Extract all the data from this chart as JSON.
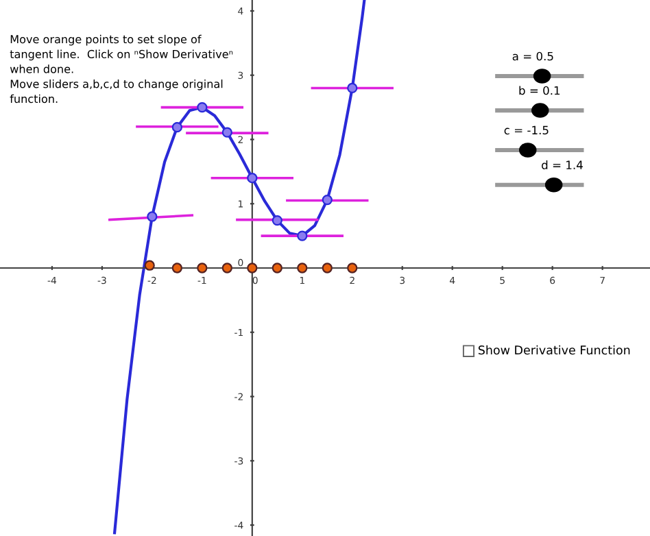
{
  "chart_data": {
    "type": "line",
    "xlim": [
      -5.04,
      7.95
    ],
    "ylim": [
      -4.17,
      4.17
    ],
    "xticks": [
      -4,
      -3,
      -2,
      -1,
      0,
      1,
      2,
      3,
      4,
      5,
      6,
      7
    ],
    "yticks": [
      -4,
      -3,
      -2,
      -1,
      0,
      1,
      2,
      3,
      4
    ],
    "series": [
      {
        "color": "#2a2ad8",
        "x": [
          -2.75,
          -2.5,
          -2.25,
          -2,
          -1.75,
          -1.5,
          -1.25,
          -1,
          -0.75,
          -0.5,
          -0.25,
          0,
          0.25,
          0.5,
          0.75,
          1,
          1.25,
          1.5,
          1.75,
          2,
          2.2,
          2.24
        ],
        "values": [
          -4.12,
          -2.04,
          -0.42,
          0.8,
          1.65,
          2.19,
          2.45,
          2.5,
          2.37,
          2.11,
          1.77,
          1.4,
          1.04,
          0.74,
          0.54,
          0.5,
          0.66,
          1.06,
          1.76,
          2.8,
          3.91,
          4.16
        ]
      },
      {
        "type": "line",
        "color": "#dd22dd",
        "x": [
          -2.85,
          -1.2
        ],
        "values": [
          0.75,
          0.82
        ]
      },
      {
        "type": "line",
        "color": "#dd22dd",
        "x": [
          -2.3,
          -0.7
        ],
        "values": [
          2.2,
          2.2
        ]
      },
      {
        "type": "line",
        "color": "#dd22dd",
        "x": [
          -1.8,
          -0.2
        ],
        "values": [
          2.5,
          2.5
        ]
      },
      {
        "type": "line",
        "color": "#dd22dd",
        "x": [
          -1.3,
          0.3
        ],
        "values": [
          2.1,
          2.1
        ]
      },
      {
        "type": "line",
        "color": "#dd22dd",
        "x": [
          -0.8,
          0.8
        ],
        "values": [
          1.4,
          1.4
        ]
      },
      {
        "type": "line",
        "color": "#dd22dd",
        "x": [
          -0.3,
          1.3
        ],
        "values": [
          0.75,
          0.75
        ]
      },
      {
        "type": "line",
        "color": "#dd22dd",
        "x": [
          0.2,
          1.8
        ],
        "values": [
          0.5,
          0.5
        ]
      },
      {
        "type": "line",
        "color": "#dd22dd",
        "x": [
          0.7,
          2.3
        ],
        "values": [
          1.05,
          1.05
        ]
      },
      {
        "type": "line",
        "color": "#dd22dd",
        "x": [
          1.2,
          2.8
        ],
        "values": [
          2.8,
          2.8
        ]
      },
      {
        "type": "scatter",
        "marker": "circle",
        "color": "#8a7cf0",
        "x": [
          -2,
          -1.5,
          -1,
          -0.5,
          0,
          0.5,
          1,
          1.5,
          2
        ],
        "values": [
          0.8,
          2.19,
          2.5,
          2.11,
          1.4,
          0.74,
          0.5,
          1.06,
          2.8
        ]
      },
      {
        "type": "scatter",
        "marker": "circle",
        "color": "#e8620e",
        "x": [
          -2.05,
          -1.5,
          -1,
          -0.5,
          0,
          0.5,
          1,
          1.5,
          2
        ],
        "values": [
          0.04,
          0,
          0,
          0,
          0,
          0,
          0,
          0,
          0
        ]
      }
    ],
    "annotations": [
      "Move orange points to set slope of\ntangent line.  Click on ⁿShow Derivativeⁿ\nwhen done.\nMove sliders a,b,c,d to change original\nfunction.",
      "a = 0.5",
      "b = 0.1",
      "c = -1.5",
      "d = 1.4",
      "Show Derivative Function"
    ]
  }
}
